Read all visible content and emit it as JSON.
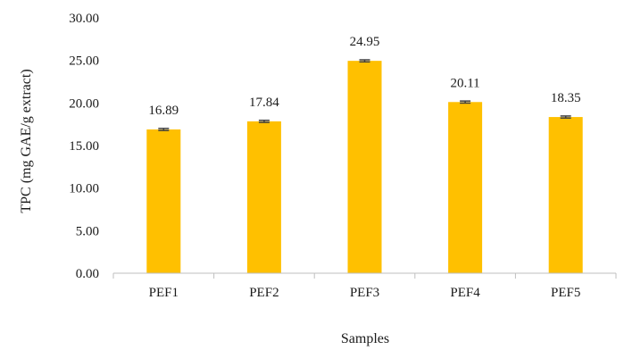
{
  "chart_data": {
    "type": "bar",
    "categories": [
      "PEF1",
      "PEF2",
      "PEF3",
      "PEF4",
      "PEF5"
    ],
    "values": [
      16.89,
      17.84,
      24.95,
      20.11,
      18.35
    ],
    "data_labels": [
      "16.89",
      "17.84",
      "24.95",
      "20.11",
      "18.35"
    ],
    "error": [
      0.12,
      0.12,
      0.12,
      0.12,
      0.12
    ],
    "title": "",
    "xlabel": "Samples",
    "ylabel": "TPC (mg GAE/g extract)",
    "ylim": [
      0,
      30
    ],
    "yticks": [
      "0.00",
      "5.00",
      "10.00",
      "15.00",
      "20.00",
      "25.00",
      "30.00"
    ],
    "grid": false,
    "legend": "none",
    "bar_color": "#FFC000",
    "error_color": "#404040",
    "axis_color": "#BFBFBF"
  }
}
